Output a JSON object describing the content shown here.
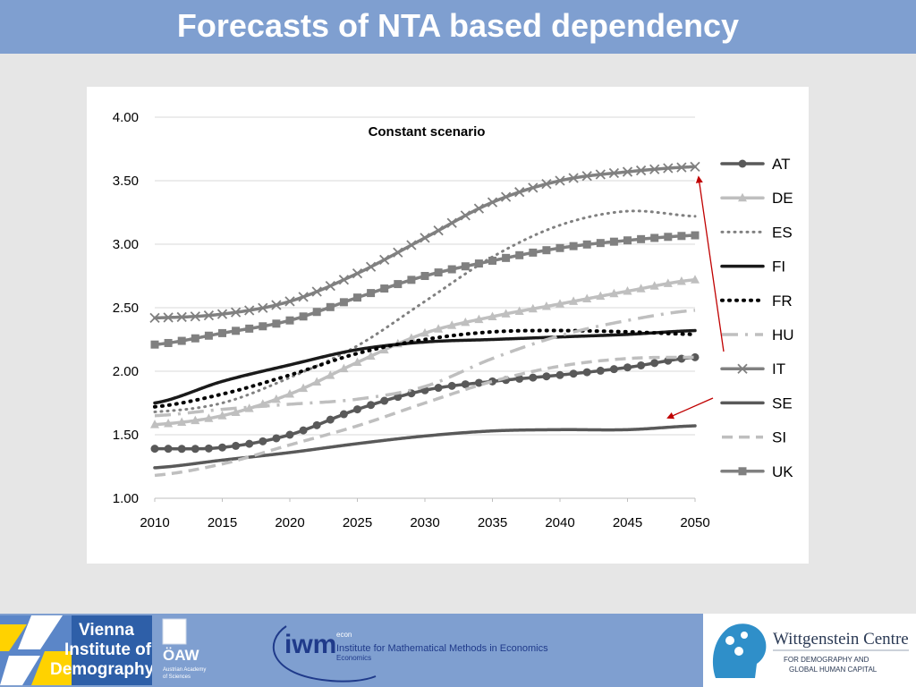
{
  "header": {
    "title": "Forecasts of NTA based dependency"
  },
  "chart_data": {
    "type": "line",
    "title": "Constant scenario",
    "xlabel": "",
    "ylabel": "",
    "xlim": [
      2010,
      2050
    ],
    "ylim": [
      1.0,
      4.0
    ],
    "x_ticks": [
      "2010",
      "2015",
      "2020",
      "2025",
      "2030",
      "2035",
      "2040",
      "2045",
      "2050"
    ],
    "y_ticks": [
      "1.00",
      "1.50",
      "2.00",
      "2.50",
      "3.00",
      "3.50",
      "4.00"
    ],
    "grid": "horizontal",
    "legend_position": "right",
    "x": [
      2010,
      2015,
      2020,
      2025,
      2030,
      2035,
      2040,
      2045,
      2050
    ],
    "series": [
      {
        "name": "AT",
        "values": [
          1.39,
          1.4,
          1.5,
          1.7,
          1.85,
          1.92,
          1.97,
          2.03,
          2.11
        ],
        "color": "#595959",
        "style": "solid",
        "marker": "circle"
      },
      {
        "name": "DE",
        "values": [
          1.58,
          1.65,
          1.82,
          2.07,
          2.3,
          2.43,
          2.53,
          2.63,
          2.72
        ],
        "color": "#bfbfbf",
        "style": "solid",
        "marker": "triangle"
      },
      {
        "name": "ES",
        "values": [
          1.68,
          1.75,
          1.95,
          2.2,
          2.55,
          2.9,
          3.15,
          3.26,
          3.22
        ],
        "color": "#808080",
        "style": "dotted",
        "marker": "none"
      },
      {
        "name": "FI",
        "values": [
          1.75,
          1.92,
          2.05,
          2.17,
          2.23,
          2.25,
          2.27,
          2.29,
          2.32
        ],
        "color": "#1a1a1a",
        "style": "solid",
        "marker": "none"
      },
      {
        "name": "FR",
        "values": [
          1.72,
          1.82,
          1.97,
          2.14,
          2.25,
          2.31,
          2.32,
          2.31,
          2.29
        ],
        "color": "#000000",
        "style": "dotted-bold",
        "marker": "none"
      },
      {
        "name": "HU",
        "values": [
          1.65,
          1.7,
          1.74,
          1.78,
          1.88,
          2.1,
          2.28,
          2.4,
          2.48
        ],
        "color": "#bfbfbf",
        "style": "dashdot",
        "marker": "none"
      },
      {
        "name": "IT",
        "values": [
          2.42,
          2.45,
          2.55,
          2.77,
          3.05,
          3.33,
          3.5,
          3.57,
          3.61
        ],
        "color": "#808080",
        "style": "solid",
        "marker": "x"
      },
      {
        "name": "SE",
        "values": [
          1.24,
          1.3,
          1.36,
          1.43,
          1.49,
          1.53,
          1.54,
          1.54,
          1.57
        ],
        "color": "#595959",
        "style": "solid",
        "marker": "none"
      },
      {
        "name": "SI",
        "values": [
          1.18,
          1.27,
          1.42,
          1.57,
          1.75,
          1.92,
          2.04,
          2.1,
          2.11
        ],
        "color": "#bfbfbf",
        "style": "dashed",
        "marker": "none"
      },
      {
        "name": "UK",
        "values": [
          2.21,
          2.3,
          2.4,
          2.58,
          2.75,
          2.87,
          2.97,
          3.03,
          3.07
        ],
        "color": "#808080",
        "style": "solid",
        "marker": "square"
      }
    ],
    "annotations": [
      {
        "type": "arrow",
        "target_series": "IT",
        "color": "#c00000"
      },
      {
        "type": "arrow",
        "target_series": "SE",
        "color": "#c00000"
      }
    ]
  },
  "footer": {
    "vid_logo_lines": [
      "Vienna",
      "Institute of",
      "Demography"
    ],
    "oaw_logo": "ÖAW",
    "oaw_sub_lines": [
      "Austrian Academy",
      "of Sciences"
    ],
    "iwm_logo": "iwm",
    "iwm_econ": "econ",
    "iwm_name": "Institute for Mathematical Methods in Economics",
    "iwm_sub": "Economics",
    "wc_title": "Wittgenstein Centre",
    "wc_sub_lines": [
      "FOR DEMOGRAPHY AND",
      "GLOBAL HUMAN CAPITAL"
    ]
  },
  "colors": {
    "header_bg": "#7f9fd0",
    "arrow": "#c00000",
    "vid_yellow": "#ffd200",
    "vid_blue": "#2e5fa8"
  }
}
